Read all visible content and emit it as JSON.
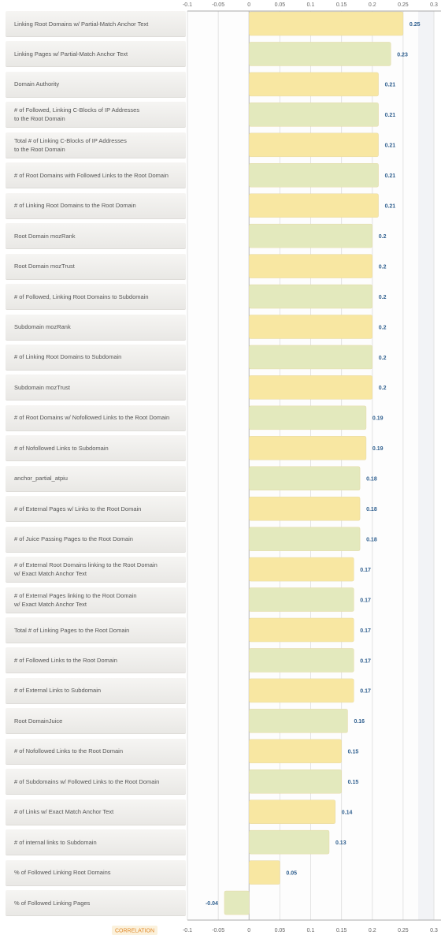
{
  "chart_data": {
    "type": "bar",
    "orientation": "horizontal",
    "x_label": "CORRELATION",
    "categories": [
      "Linking Root Domains w/ Partial-Match Anchor Text",
      "Linking Pages w/ Partial-Match Anchor Text",
      "Domain Authority",
      "# of Followed, Linking C-Blocks of IP Addresses\nto the Root Domain",
      "Total # of Linking C-Blocks of IP Addresses\nto the Root Domain",
      "# of Root Domains with Followed Links to the Root Domain",
      "# of Linking Root Domains to the Root Domain",
      "Root Domain mozRank",
      "Root Domain mozTrust",
      "# of Followed, Linking Root Domains to Subdomain",
      "Subdomain mozRank",
      "# of Linking Root Domains to Subdomain",
      "Subdomain mozTrust",
      "# of Root Domains w/ Nofollowed Links to the Root Domain",
      "# of Nofollowed Links to Subdomain",
      "anchor_partial_atpiu",
      "# of External Pages w/ Links to the Root Domain",
      "# of Juice Passing Pages to the Root Domain",
      "# of External Root Domains linking to the Root Domain\nw/ Exact Match Anchor Text",
      "# of External Pages linking to the Root Domain\nw/ Exact Match Anchor Text",
      "Total # of Linking Pages to the Root Domain",
      "# of Followed Links to the Root Domain",
      "# of External Links to Subdomain",
      "Root DomainJuice",
      "# of Nofollowed Links to the Root Domain",
      "# of Subdomains w/ Followed Links to the Root Domain",
      "# of Links w/ Exact Match Anchor Text",
      "# of internal links to Subdomain",
      "% of Followed Linking Root Domains",
      "% of Followed Linking Pages"
    ],
    "values": [
      0.25,
      0.23,
      0.21,
      0.21,
      0.21,
      0.21,
      0.21,
      0.2,
      0.2,
      0.2,
      0.2,
      0.2,
      0.2,
      0.19,
      0.19,
      0.18,
      0.18,
      0.18,
      0.17,
      0.17,
      0.17,
      0.17,
      0.17,
      0.16,
      0.15,
      0.15,
      0.14,
      0.13,
      0.05,
      -0.04
    ],
    "colors": [
      "#f8e7a2",
      "#e3e9bd"
    ],
    "xlim": [
      -0.1,
      0.3
    ],
    "xticks": [
      -0.1,
      -0.05,
      0,
      0.05,
      0.1,
      0.15,
      0.2,
      0.25,
      0.3
    ],
    "grid": true
  }
}
